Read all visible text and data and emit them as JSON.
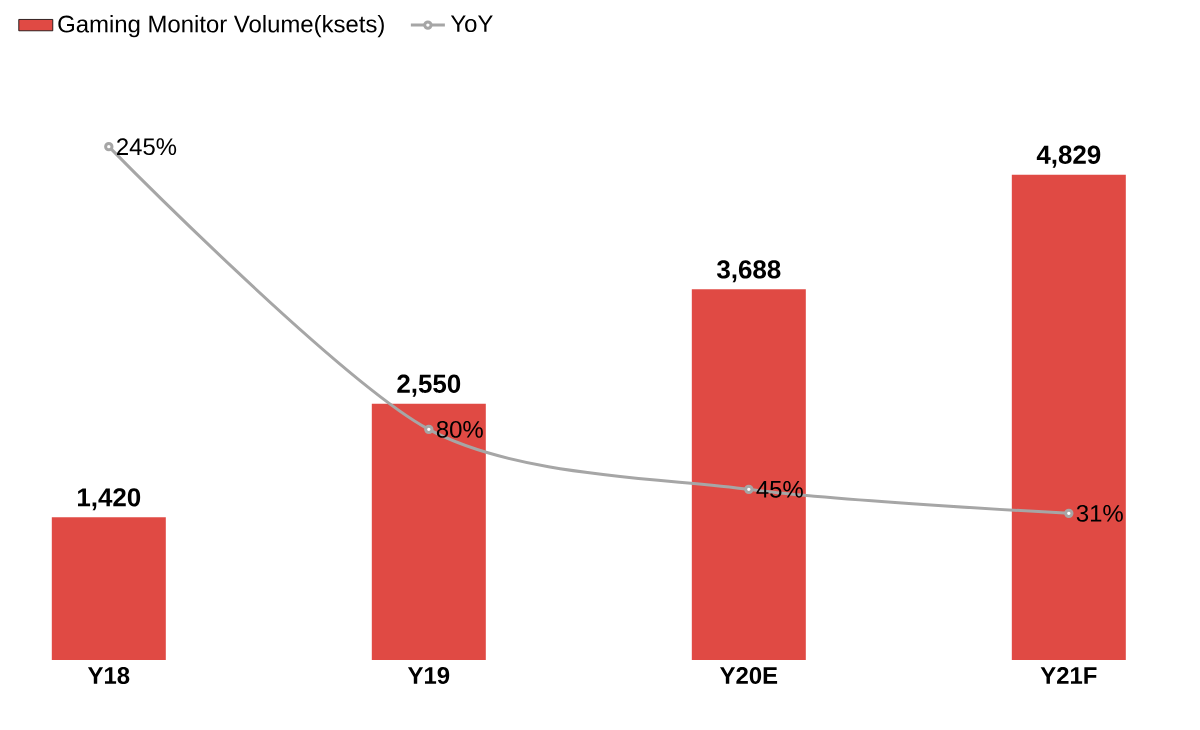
{
  "chart_data": {
    "type": "bar",
    "categories": [
      "Y18",
      "Y19",
      "Y20E",
      "Y21F"
    ],
    "tick_labels": "x",
    "legend": "top left",
    "series": [
      {
        "name": "Gaming Monitor Volume(ksets)",
        "color": "#e04a44",
        "values": [
          1420,
          2550,
          3688,
          4829
        ],
        "value_labels": [
          "1,420",
          "2,550",
          "3,688",
          "4,829"
        ]
      },
      {
        "name": "YoY",
        "type": "line",
        "axis": "y2",
        "color": "#a6a6a6",
        "marker": "circle",
        "line_style": "solid",
        "values": [
          245,
          80,
          45,
          31
        ],
        "value_labels": [
          "245%",
          "80%",
          "45%",
          "31%"
        ]
      }
    ]
  }
}
